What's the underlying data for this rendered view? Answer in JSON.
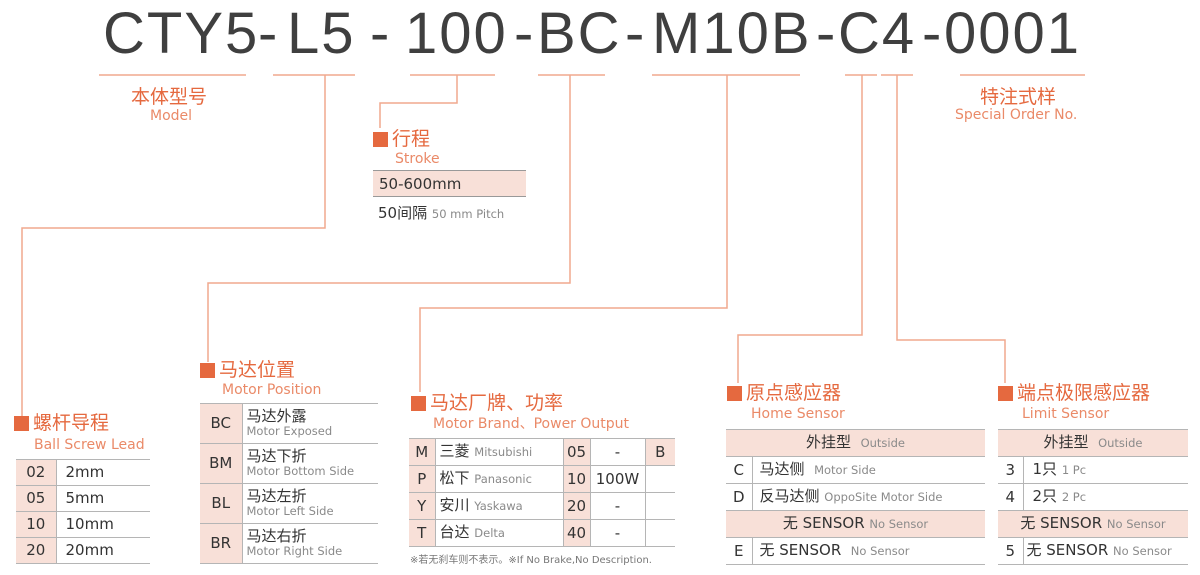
{
  "code": {
    "segments": [
      "CTY5",
      "L5",
      "100",
      "BC",
      "M10B",
      "C4",
      "0001"
    ],
    "separator": "-"
  },
  "model": {
    "zh": "本体型号",
    "en": "Model"
  },
  "special": {
    "zh": "特注式样",
    "en": "Special Order No."
  },
  "stroke": {
    "zh": "行程",
    "en": "Stroke",
    "range": "50-600mm",
    "pitch_zh": "50间隔",
    "pitch_en": "50 mm Pitch"
  },
  "lead": {
    "zh": "螺杆导程",
    "en": "Ball Screw Lead",
    "rows": [
      {
        "code": "02",
        "value": "2mm"
      },
      {
        "code": "05",
        "value": "5mm"
      },
      {
        "code": "10",
        "value": "10mm"
      },
      {
        "code": "20",
        "value": "20mm"
      }
    ]
  },
  "position": {
    "zh": "马达位置",
    "en": "Motor Position",
    "rows": [
      {
        "code": "BC",
        "zh": "马达外露",
        "en": "Motor Exposed"
      },
      {
        "code": "BM",
        "zh": "马达下折",
        "en": "Motor Bottom Side"
      },
      {
        "code": "BL",
        "zh": "马达左折",
        "en": "Motor Left Side"
      },
      {
        "code": "BR",
        "zh": "马达右折",
        "en": "Motor Right Side"
      }
    ]
  },
  "brand": {
    "zh": "马达厂牌、功率",
    "en": "Motor Brand、Power Output",
    "brake": "B",
    "rows": [
      {
        "code": "M",
        "zh": "三菱",
        "en": "Mitsubishi",
        "pcode": "05",
        "power": "-"
      },
      {
        "code": "P",
        "zh": "松下",
        "en": "Panasonic",
        "pcode": "10",
        "power": "100W"
      },
      {
        "code": "Y",
        "zh": "安川",
        "en": "Yaskawa",
        "pcode": "20",
        "power": "-"
      },
      {
        "code": "T",
        "zh": "台达",
        "en": "Delta",
        "pcode": "40",
        "power": "-"
      }
    ],
    "note": "※若无刹车则不表示。※If No Brake,No Description."
  },
  "home": {
    "zh": "原点感应器",
    "en": "Home Sensor",
    "outside_zh": "外挂型",
    "outside_en": "Outside",
    "rows": [
      {
        "code": "C",
        "zh": "马达侧",
        "en": "Motor Side"
      },
      {
        "code": "D",
        "zh": "反马达侧",
        "en": "OppoSite Motor Side"
      }
    ],
    "nosensor_zh": "无 SENSOR",
    "nosensor_en": "No Sensor",
    "e": {
      "code": "E",
      "zh": "无 SENSOR",
      "en": "No Sensor"
    }
  },
  "limit": {
    "zh": "端点极限感应器",
    "en": "Limit Sensor",
    "outside_zh": "外挂型",
    "outside_en": "Outside",
    "rows": [
      {
        "code": "3",
        "zh": "1只",
        "en": "1 Pc"
      },
      {
        "code": "4",
        "zh": "2只",
        "en": "2 Pc"
      }
    ],
    "nosensor_zh": "无 SENSOR",
    "nosensor_en": "No Sensor",
    "e": {
      "code": "5",
      "zh": "无 SENSOR",
      "en": "No Sensor"
    }
  },
  "colors": {
    "accent": "#e5693f",
    "line": "#f0a98e",
    "cell": "#f8e0d8",
    "code_text": "#3f3f3f"
  }
}
